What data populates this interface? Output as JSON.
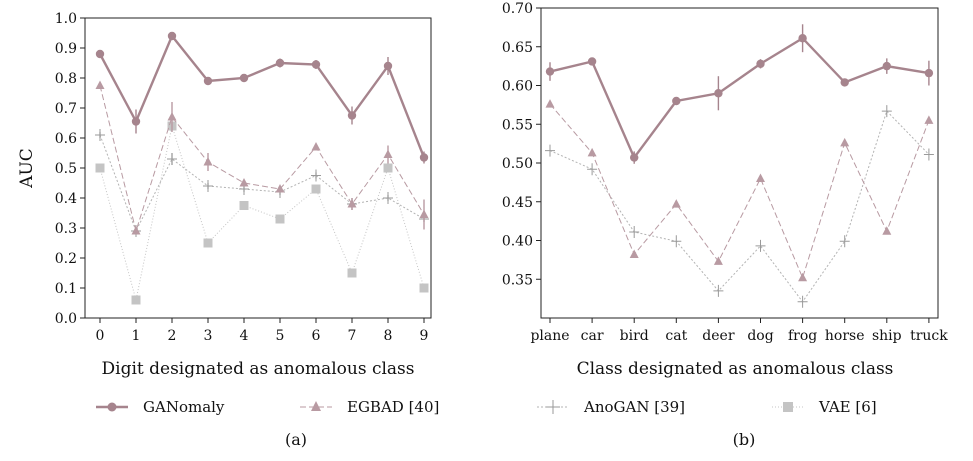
{
  "legend": [
    {
      "name": "GANomaly"
    },
    {
      "name": "EGBAD [40]"
    },
    {
      "name": "AnoGAN [39]"
    },
    {
      "name": "VAE [6]"
    }
  ],
  "colors": {
    "GANomaly": "#a6848d",
    "EGBAD": "#b89aa2",
    "AnoGAN": "#b3b3b3",
    "VAE": "#c4c4c4"
  },
  "chart_data": [
    {
      "type": "line",
      "caption": "(a)",
      "xlabel": "Digit designated as anomalous class",
      "ylabel": "AUC",
      "categories": [
        "0",
        "1",
        "2",
        "3",
        "4",
        "5",
        "6",
        "7",
        "8",
        "9"
      ],
      "ylim": [
        0.0,
        1.0
      ],
      "yticks": [
        "0.0",
        "0.1",
        "0.2",
        "0.3",
        "0.4",
        "0.5",
        "0.6",
        "0.7",
        "0.8",
        "0.9",
        "1.0"
      ],
      "grid": false,
      "series": [
        {
          "name": "GANomaly",
          "values": [
            0.88,
            0.655,
            0.94,
            0.79,
            0.8,
            0.85,
            0.845,
            0.675,
            0.84,
            0.535
          ],
          "err": [
            0.01,
            0.04,
            0.01,
            0.01,
            0.01,
            0.015,
            0.015,
            0.03,
            0.03,
            0.02
          ]
        },
        {
          "name": "EGBAD [40]",
          "values": [
            0.775,
            0.29,
            0.67,
            0.52,
            0.45,
            0.43,
            0.57,
            0.38,
            0.545,
            0.345
          ],
          "err": [
            0.005,
            0.005,
            0.05,
            0.03,
            0.01,
            0.01,
            0.01,
            0.02,
            0.03,
            0.05
          ]
        },
        {
          "name": "AnoGAN [39]",
          "values": [
            0.61,
            0.29,
            0.53,
            0.44,
            0.43,
            0.42,
            0.475,
            0.38,
            0.4,
            0.33
          ],
          "err": [
            0.01,
            0.01,
            0.02,
            0.01,
            0.01,
            0.01,
            0.01,
            0.02,
            0.01,
            0.01
          ]
        },
        {
          "name": "VAE [6]",
          "values": [
            0.5,
            0.06,
            0.64,
            0.25,
            0.375,
            0.33,
            0.43,
            0.15,
            0.5,
            0.1
          ],
          "err": [
            0.0,
            0.0,
            0.0,
            0.0,
            0.0,
            0.0,
            0.0,
            0.0,
            0.0,
            0.0
          ]
        }
      ]
    },
    {
      "type": "line",
      "caption": "(b)",
      "xlabel": "Class designated as anomalous class",
      "ylabel": "",
      "categories": [
        "plane",
        "car",
        "bird",
        "cat",
        "deer",
        "dog",
        "frog",
        "horse",
        "ship",
        "truck"
      ],
      "ylim": [
        0.3,
        0.7
      ],
      "yticks": [
        "0.35",
        "0.40",
        "0.45",
        "0.50",
        "0.55",
        "0.60",
        "0.65",
        "0.70"
      ],
      "grid": false,
      "series": [
        {
          "name": "GANomaly",
          "values": [
            0.618,
            0.631,
            0.507,
            0.58,
            0.59,
            0.628,
            0.661,
            0.604,
            0.625,
            0.616
          ],
          "err": [
            0.012,
            0.004,
            0.008,
            0.004,
            0.022,
            0.006,
            0.018,
            0.005,
            0.01,
            0.016
          ]
        },
        {
          "name": "EGBAD [40]",
          "values": [
            0.576,
            0.513,
            0.382,
            0.447,
            0.373,
            0.48,
            0.352,
            0.526,
            0.412,
            0.555
          ],
          "err": [
            0.0,
            0.0,
            0.0,
            0.0,
            0.0,
            0.0,
            0.0,
            0.0,
            0.0,
            0.0
          ]
        },
        {
          "name": "AnoGAN [39]",
          "values": [
            0.516,
            0.492,
            0.411,
            0.399,
            0.335,
            0.393,
            0.321,
            0.399,
            0.567,
            0.511
          ],
          "err": [
            0.0,
            0.0,
            0.0,
            0.0,
            0.0,
            0.0,
            0.0,
            0.0,
            0.0,
            0.0
          ]
        }
      ]
    }
  ]
}
